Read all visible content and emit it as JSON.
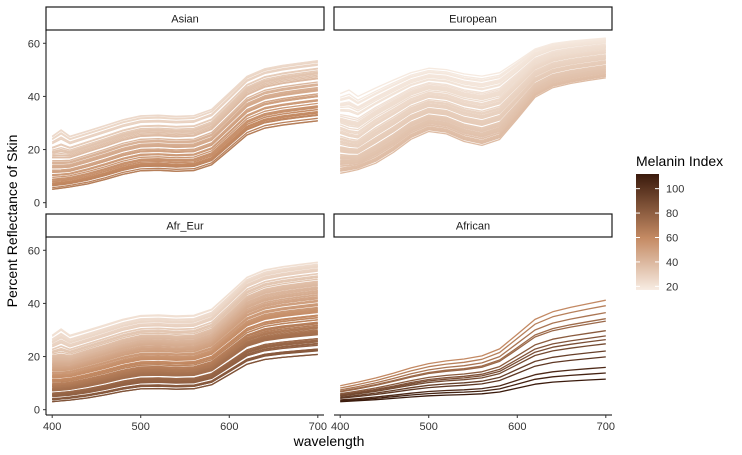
{
  "chart_data": {
    "type": "line",
    "facet_order": [
      "Asian",
      "European",
      "Afr_Eur",
      "African"
    ],
    "xlabel": "wavelength",
    "ylabel": "Percent Reflectance of Skin",
    "x_ticks": [
      400,
      500,
      600,
      700
    ],
    "y_ticks": [
      0,
      20,
      40,
      60
    ],
    "xlim": [
      393,
      707
    ],
    "ylim": [
      -2,
      65
    ],
    "x_points": [
      400,
      410,
      420,
      440,
      460,
      480,
      500,
      520,
      540,
      560,
      580,
      600,
      620,
      640,
      660,
      680,
      700
    ],
    "legend": {
      "title": "Melanin Index",
      "ticks": [
        20,
        40,
        60,
        80,
        100
      ],
      "range": [
        17,
        112
      ],
      "color_low": "#f7ece3",
      "color_mid": "#c48a63",
      "color_high": "#3a1a0c",
      "placement": "right"
    },
    "facets": [
      {
        "label": "Asian",
        "curve_count": 60,
        "melanin_index_range": [
          25,
          65
        ],
        "reflectance_at_400": [
          5,
          25
        ],
        "reflectance_at_700": [
          34,
          57
        ]
      },
      {
        "label": "European",
        "curve_count": 80,
        "melanin_index_range": [
          18,
          38
        ],
        "reflectance_at_400": [
          8,
          40
        ],
        "reflectance_at_700": [
          47,
          62
        ]
      },
      {
        "label": "Afr_Eur",
        "curve_count": 110,
        "melanin_index_range": [
          22,
          85
        ],
        "reflectance_at_400": [
          3,
          28
        ],
        "reflectance_at_700": [
          23,
          59
        ]
      },
      {
        "label": "African",
        "curve_count": 14,
        "melanin_index_range": [
          60,
          112
        ],
        "reflectance_at_400": [
          3,
          9
        ],
        "reflectance_at_700": [
          12,
          43
        ]
      }
    ]
  }
}
